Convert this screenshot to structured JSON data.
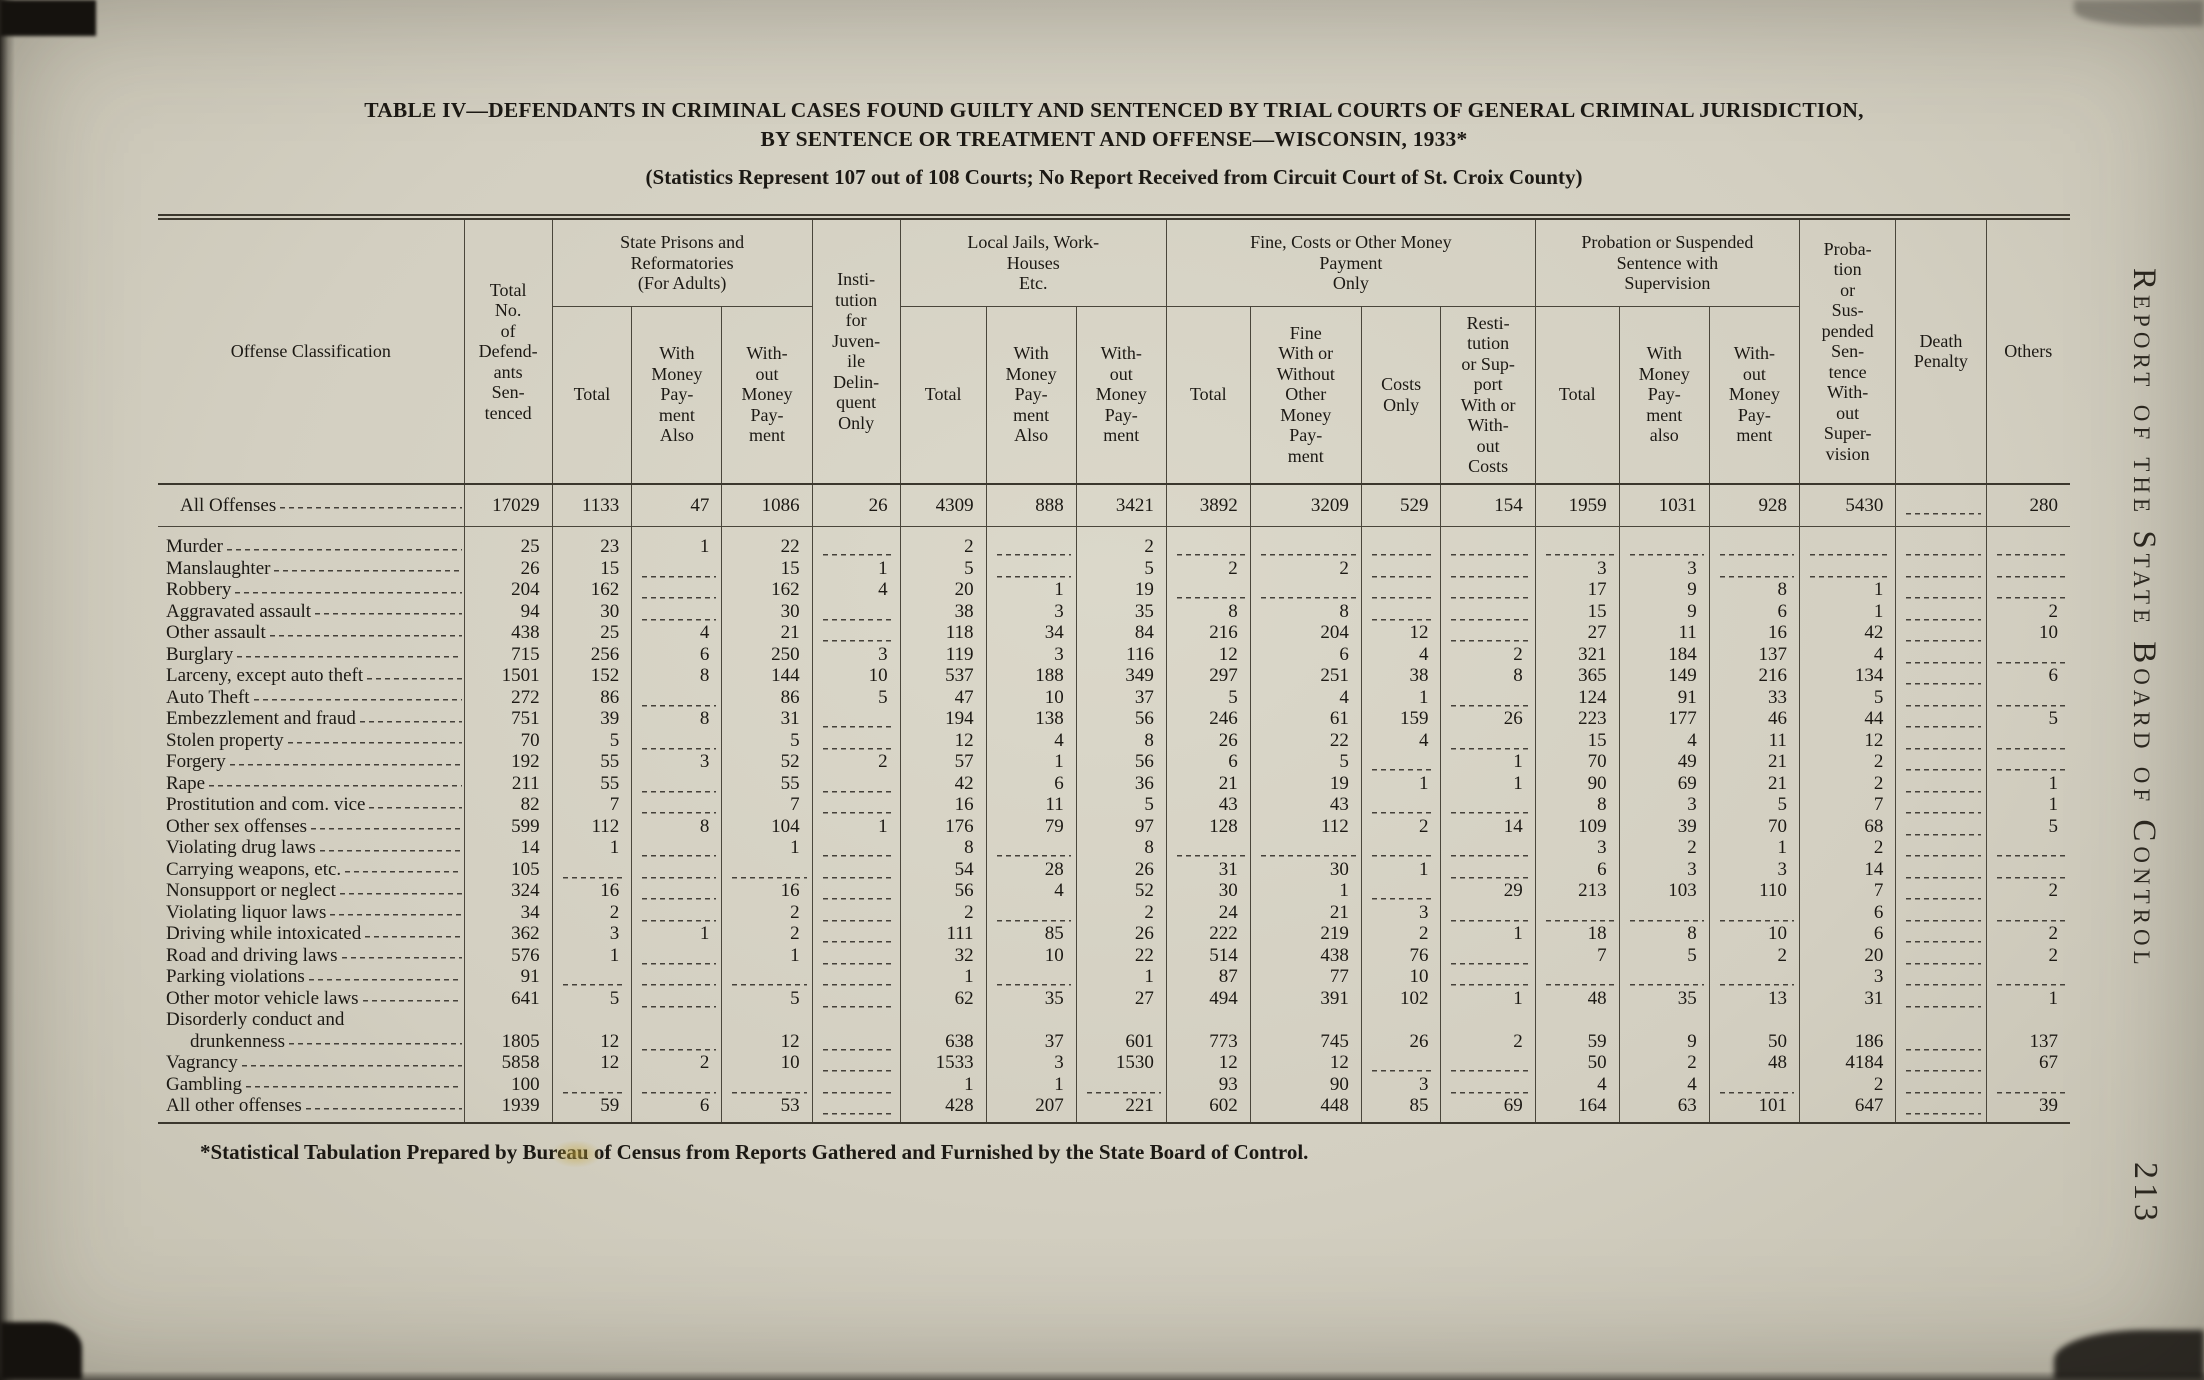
{
  "page": {
    "title_line1": "TABLE IV—DEFENDANTS IN CRIMINAL CASES FOUND GUILTY AND SENTENCED BY TRIAL COURTS OF GENERAL CRIMINAL JURISDICTION,",
    "title_line2": "BY SENTENCE OR TREATMENT AND OFFENSE—WISCONSIN, 1933*",
    "subtitle": "(Statistics Represent 107 out of 108 Courts; No Report Received from Circuit Court of St. Croix County)",
    "footnote": "*Statistical Tabulation Prepared by Bureau of Census from Reports Gathered and Furnished by the State Board of Control.",
    "side_text": "Report of the State Board of Control",
    "page_number": "213"
  },
  "table": {
    "header": {
      "offense": "Offense Classification",
      "total_defendants": "Total\nNo.\nof\nDefend-\nants\nSen-\ntenced",
      "prisons_group": "State Prisons and\nReformatories\n(For Adults)",
      "prisons_total": "Total",
      "prisons_with_money": "With\nMoney\nPay-\nment\nAlso",
      "prisons_without_money": "With-\nout\nMoney\nPay-\nment",
      "institution": "Insti-\ntution\nfor\nJuven-\nile\nDelin-\nquent\nOnly",
      "jails_group": "Local Jails, Work-\nHouses\nEtc.",
      "jails_total": "Total",
      "jails_with_money": "With\nMoney\nPay-\nment\nAlso",
      "jails_without_money": "With-\nout\nMoney\nPay-\nment",
      "fine_group": "Fine, Costs or Other Money\nPayment\nOnly",
      "fine_total": "Total",
      "fine_with_without": "Fine\nWith or\nWithout\nOther\nMoney\nPay-\nment",
      "costs_only": "Costs\nOnly",
      "restitution": "Resti-\ntution\nor Sup-\nport\nWith or\nWith-\nout\nCosts",
      "probation_group": "Probation or Suspended\nSentence with\nSupervision",
      "probation_total": "Total",
      "probation_with_money": "With\nMoney\nPay-\nment\nalso",
      "probation_without_money": "With-\nout\nMoney\nPay-\nment",
      "probation_no_supervision": "Proba-\ntion\nor\nSus-\npended\nSen-\ntence\nWith-\nout\nSuper-\nvision",
      "death_penalty": "Death\nPenalty",
      "others": "Others"
    },
    "rows": [
      {
        "label": "All Offenses",
        "total": true,
        "values": [
          17029,
          1133,
          47,
          1086,
          26,
          4309,
          888,
          3421,
          3892,
          3209,
          529,
          154,
          1959,
          1031,
          928,
          5430,
          null,
          280
        ]
      },
      {
        "label": "Murder",
        "values": [
          25,
          23,
          1,
          22,
          null,
          2,
          null,
          2,
          null,
          null,
          null,
          null,
          null,
          null,
          null,
          null,
          null,
          null
        ]
      },
      {
        "label": "Manslaughter",
        "values": [
          26,
          15,
          null,
          15,
          1,
          5,
          null,
          5,
          2,
          2,
          null,
          null,
          3,
          3,
          null,
          null,
          null,
          null
        ]
      },
      {
        "label": "Robbery",
        "values": [
          204,
          162,
          null,
          162,
          4,
          20,
          1,
          19,
          null,
          null,
          null,
          null,
          17,
          9,
          8,
          1,
          null,
          null
        ]
      },
      {
        "label": "Aggravated assault",
        "values": [
          94,
          30,
          null,
          30,
          null,
          38,
          3,
          35,
          8,
          8,
          null,
          null,
          15,
          9,
          6,
          1,
          null,
          2
        ]
      },
      {
        "label": "Other assault",
        "values": [
          438,
          25,
          4,
          21,
          null,
          118,
          34,
          84,
          216,
          204,
          12,
          null,
          27,
          11,
          16,
          42,
          null,
          10
        ]
      },
      {
        "label": "Burglary",
        "values": [
          715,
          256,
          6,
          250,
          3,
          119,
          3,
          116,
          12,
          6,
          4,
          2,
          321,
          184,
          137,
          4,
          null,
          null
        ]
      },
      {
        "label": "Larceny, except auto theft",
        "values": [
          1501,
          152,
          8,
          144,
          10,
          537,
          188,
          349,
          297,
          251,
          38,
          8,
          365,
          149,
          216,
          134,
          null,
          6
        ]
      },
      {
        "label": "Auto Theft",
        "values": [
          272,
          86,
          null,
          86,
          5,
          47,
          10,
          37,
          5,
          4,
          1,
          null,
          124,
          91,
          33,
          5,
          null,
          null
        ]
      },
      {
        "label": "Embezzlement and fraud",
        "values": [
          751,
          39,
          8,
          31,
          null,
          194,
          138,
          56,
          246,
          61,
          159,
          26,
          223,
          177,
          46,
          44,
          null,
          5
        ]
      },
      {
        "label": "Stolen property",
        "values": [
          70,
          5,
          null,
          5,
          null,
          12,
          4,
          8,
          26,
          22,
          4,
          null,
          15,
          4,
          11,
          12,
          null,
          null
        ]
      },
      {
        "label": "Forgery",
        "values": [
          192,
          55,
          3,
          52,
          2,
          57,
          1,
          56,
          6,
          5,
          null,
          1,
          70,
          49,
          21,
          2,
          null,
          null
        ]
      },
      {
        "label": "Rape",
        "values": [
          211,
          55,
          null,
          55,
          null,
          42,
          6,
          36,
          21,
          19,
          1,
          1,
          90,
          69,
          21,
          2,
          null,
          1
        ]
      },
      {
        "label": "Prostitution and com. vice",
        "values": [
          82,
          7,
          null,
          7,
          null,
          16,
          11,
          5,
          43,
          43,
          null,
          null,
          8,
          3,
          5,
          7,
          null,
          1
        ]
      },
      {
        "label": "Other sex offenses",
        "values": [
          599,
          112,
          8,
          104,
          1,
          176,
          79,
          97,
          128,
          112,
          2,
          14,
          109,
          39,
          70,
          68,
          null,
          5
        ]
      },
      {
        "label": "Violating drug laws",
        "values": [
          14,
          1,
          null,
          1,
          null,
          8,
          null,
          8,
          null,
          null,
          null,
          null,
          3,
          2,
          1,
          2,
          null,
          null
        ]
      },
      {
        "label": "Carrying weapons, etc.",
        "values": [
          105,
          null,
          null,
          null,
          null,
          54,
          28,
          26,
          31,
          30,
          1,
          null,
          6,
          3,
          3,
          14,
          null,
          null
        ]
      },
      {
        "label": "Nonsupport or neglect",
        "values": [
          324,
          16,
          null,
          16,
          null,
          56,
          4,
          52,
          30,
          1,
          null,
          29,
          213,
          103,
          110,
          7,
          null,
          2
        ]
      },
      {
        "label": "Violating liquor laws",
        "values": [
          34,
          2,
          null,
          2,
          null,
          2,
          null,
          2,
          24,
          21,
          3,
          null,
          null,
          null,
          null,
          6,
          null,
          null
        ]
      },
      {
        "label": "Driving while intoxicated",
        "values": [
          362,
          3,
          1,
          2,
          null,
          111,
          85,
          26,
          222,
          219,
          2,
          1,
          18,
          8,
          10,
          6,
          null,
          2
        ]
      },
      {
        "label": "Road and driving laws",
        "values": [
          576,
          1,
          null,
          1,
          null,
          32,
          10,
          22,
          514,
          438,
          76,
          null,
          7,
          5,
          2,
          20,
          null,
          2
        ]
      },
      {
        "label": "Parking violations",
        "values": [
          91,
          null,
          null,
          null,
          null,
          1,
          null,
          1,
          87,
          77,
          10,
          null,
          null,
          null,
          null,
          3,
          null,
          null
        ]
      },
      {
        "label": "Other motor vehicle laws",
        "values": [
          641,
          5,
          null,
          5,
          null,
          62,
          35,
          27,
          494,
          391,
          102,
          1,
          48,
          35,
          13,
          31,
          null,
          1
        ]
      },
      {
        "label": "Disorderly conduct and",
        "cont": true
      },
      {
        "label": "drunkenness",
        "indent": true,
        "values": [
          1805,
          12,
          null,
          12,
          null,
          638,
          37,
          601,
          773,
          745,
          26,
          2,
          59,
          9,
          50,
          186,
          null,
          137
        ]
      },
      {
        "label": "Vagrancy",
        "values": [
          5858,
          12,
          2,
          10,
          null,
          1533,
          3,
          1530,
          12,
          12,
          null,
          null,
          50,
          2,
          48,
          4184,
          null,
          67
        ]
      },
      {
        "label": "Gambling",
        "values": [
          100,
          null,
          null,
          null,
          null,
          1,
          1,
          null,
          93,
          90,
          3,
          null,
          4,
          4,
          null,
          2,
          null,
          null
        ]
      },
      {
        "label": "All other offenses",
        "values": [
          1939,
          59,
          6,
          53,
          null,
          428,
          207,
          221,
          602,
          448,
          85,
          69,
          164,
          63,
          101,
          647,
          null,
          39
        ]
      }
    ]
  }
}
